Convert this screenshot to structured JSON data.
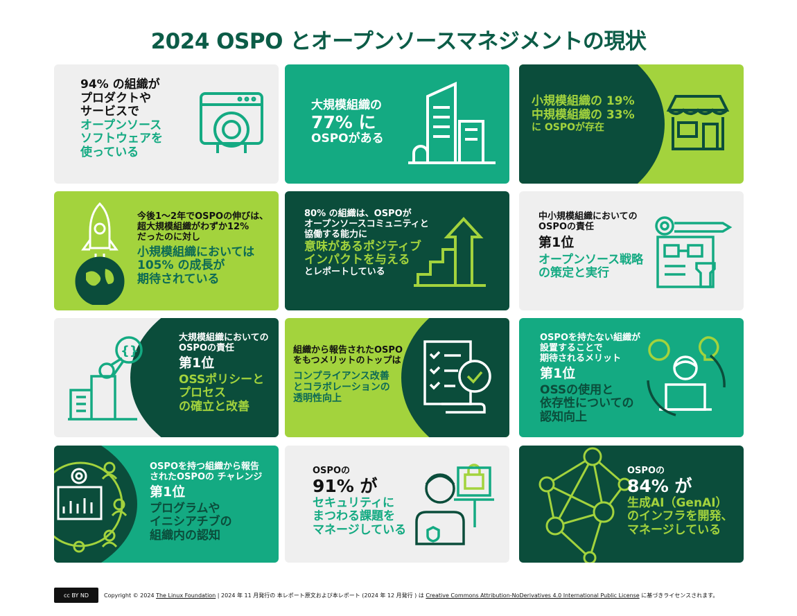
{
  "title": "2024 OSPO とオープンソースマネジメントの現状",
  "cards": [
    {
      "lines": [
        "94% の組織が",
        "プロダクトや",
        "サービスで"
      ],
      "highlight": [
        "オープンソース",
        "ソフトウェアを",
        "使っている"
      ],
      "icon": "browser-code-icon"
    },
    {
      "lines": [
        "大規模組織の",
        "77% に",
        "OSPOがある"
      ],
      "icon": "office-building-icon"
    },
    {
      "lines": [
        "小規模組織の 19%",
        "中規模組織の 33%",
        "に OSPOが存在"
      ],
      "icon": "storefront-icon"
    },
    {
      "lines": [
        "今後1～2年でOSPOの伸びは、",
        "超大規模組織がわずか12%",
        "だったのに対し"
      ],
      "highlight": [
        "小規模組織においては",
        "105% の成長が",
        "期待されている"
      ],
      "icon": "rocket-globe-icon"
    },
    {
      "lines": [
        "80% の組織は、OSPOが",
        "オープンソースコミュニティと",
        "協働する能力に"
      ],
      "highlight": [
        "意味があるポジティブ",
        "インパクトを与える"
      ],
      "tail": "とレポートしている",
      "icon": "growth-chart-icon"
    },
    {
      "lines": [
        "中小規模組織においての",
        "OSPOの責任"
      ],
      "rank": "第1位",
      "highlight": [
        "オープンソース戦略",
        "の策定と実行"
      ],
      "icon": "strategy-icon"
    },
    {
      "lines": [
        "大規模組織においての",
        "OSPOの責任"
      ],
      "rank": "第1位",
      "highlight": [
        "OSSポリシーと",
        "プロセス",
        "の確立と改善"
      ],
      "icon": "policy-building-icon"
    },
    {
      "lines": [
        "組織から報告されたOSPO",
        "をもつメリットのトップは"
      ],
      "highlight": [
        "コンプライアンス改善",
        "とコラボレーションの",
        "透明性向上"
      ],
      "icon": "checklist-gear-icon"
    },
    {
      "lines": [
        "OSPOを持たない組織が",
        "設置することで",
        "期待されるメリット"
      ],
      "rank": "第1位",
      "highlight": [
        "OSSの使用と",
        "依存性についての",
        "認知向上"
      ],
      "icon": "developer-laptop-icon"
    },
    {
      "lines": [
        "OSPOを持つ組織から報告",
        "されたOSPOの チャレンジ"
      ],
      "rank": "第1位",
      "highlight": [
        "プログラムや",
        "イニシアチブの",
        "組織内の認知"
      ],
      "icon": "people-network-icon"
    },
    {
      "lines": [
        "OSPOの",
        "91% が"
      ],
      "highlight": [
        "セキュリティに",
        "まつわる課題を",
        "マネージしている"
      ],
      "icon": "security-person-icon"
    },
    {
      "lines": [
        "OSPOの",
        "84% が"
      ],
      "highlight": [
        "生成AI（GenAI）",
        "のインフラを開発、",
        "マネージしている"
      ],
      "icon": "network-nodes-icon"
    }
  ],
  "footer": {
    "pre": "Copyright © 2024 ",
    "org": "The Linux Foundation",
    "mid": " | 2024 年 11 月発行の 本レポート原文および本レポート (2024 年 12 月発行 ) は ",
    "license": "Creative Commons Attribution-NoDerivatives 4.0 International Public License",
    "post": " に基づきライセンスされます。",
    "badge": "cc BY ND"
  },
  "colors": {
    "dark": "#0b4d3b",
    "teal": "#14aa82",
    "lime": "#a3d33d",
    "gray": "#efefef"
  }
}
